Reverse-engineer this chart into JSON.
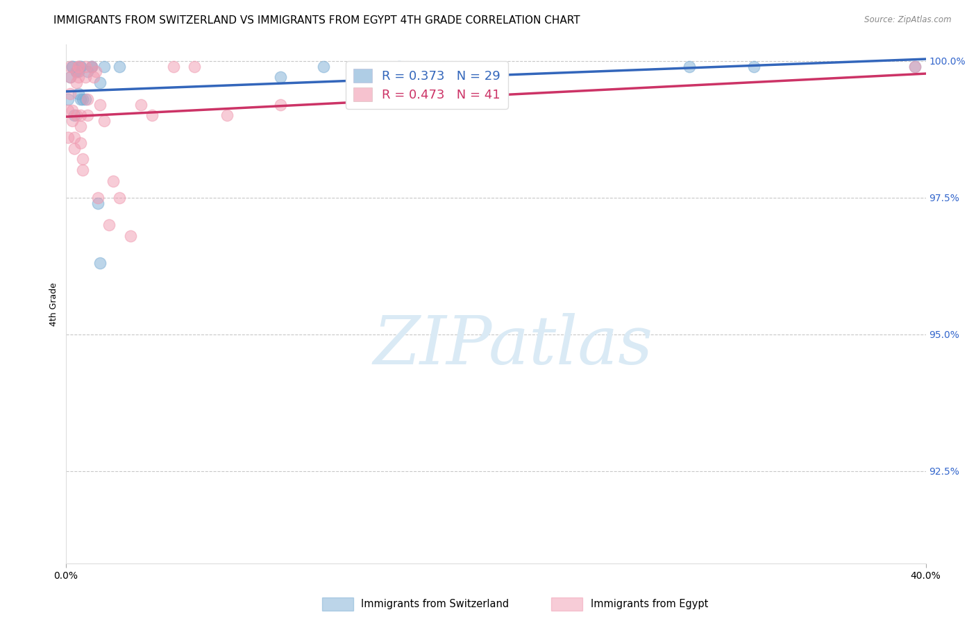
{
  "title": "IMMIGRANTS FROM SWITZERLAND VS IMMIGRANTS FROM EGYPT 4TH GRADE CORRELATION CHART",
  "source": "Source: ZipAtlas.com",
  "ylabel": "4th Grade",
  "xlim": [
    0.0,
    0.4
  ],
  "ylim": [
    0.908,
    1.003
  ],
  "yticks": [
    0.925,
    0.95,
    0.975,
    1.0
  ],
  "ytick_labels": [
    "92.5%",
    "95.0%",
    "97.5%",
    "100.0%"
  ],
  "xtick_labels": [
    "0.0%",
    "40.0%"
  ],
  "grid_color": "#c8c8c8",
  "background_color": "#ffffff",
  "switzerland_color": "#7aadd4",
  "egypt_color": "#f09ab0",
  "sw_line_color": "#3366bb",
  "eg_line_color": "#cc3366",
  "legend_R_switzerland": "R = 0.373",
  "legend_N_switzerland": "N = 29",
  "legend_R_egypt": "R = 0.473",
  "legend_N_egypt": "N = 41",
  "switzerland_x": [
    0.001,
    0.002,
    0.003,
    0.003,
    0.004,
    0.005,
    0.005,
    0.006,
    0.006,
    0.006,
    0.007,
    0.007,
    0.007,
    0.008,
    0.009,
    0.01,
    0.012,
    0.012,
    0.015,
    0.016,
    0.016,
    0.018,
    0.025,
    0.1,
    0.12,
    0.155,
    0.29,
    0.32,
    0.395
  ],
  "switzerland_y": [
    0.993,
    0.997,
    0.999,
    0.999,
    0.99,
    0.998,
    0.998,
    0.999,
    0.998,
    0.994,
    0.993,
    0.999,
    0.999,
    0.993,
    0.993,
    0.998,
    0.999,
    0.999,
    0.974,
    0.963,
    0.996,
    0.999,
    0.999,
    0.997,
    0.999,
    0.999,
    0.999,
    0.999,
    0.999
  ],
  "egypt_x": [
    0.001,
    0.001,
    0.002,
    0.002,
    0.002,
    0.003,
    0.003,
    0.004,
    0.004,
    0.005,
    0.005,
    0.005,
    0.006,
    0.006,
    0.006,
    0.007,
    0.007,
    0.007,
    0.008,
    0.008,
    0.009,
    0.009,
    0.01,
    0.01,
    0.012,
    0.013,
    0.014,
    0.015,
    0.016,
    0.018,
    0.02,
    0.022,
    0.025,
    0.03,
    0.035,
    0.04,
    0.05,
    0.06,
    0.075,
    0.1,
    0.395
  ],
  "egypt_y": [
    0.991,
    0.986,
    0.999,
    0.997,
    0.994,
    0.991,
    0.989,
    0.986,
    0.984,
    0.998,
    0.996,
    0.99,
    0.999,
    0.999,
    0.997,
    0.99,
    0.988,
    0.985,
    0.982,
    0.98,
    0.999,
    0.997,
    0.993,
    0.99,
    0.999,
    0.997,
    0.998,
    0.975,
    0.992,
    0.989,
    0.97,
    0.978,
    0.975,
    0.968,
    0.992,
    0.99,
    0.999,
    0.999,
    0.99,
    0.992,
    0.999
  ],
  "title_fontsize": 11,
  "axis_label_fontsize": 9,
  "tick_fontsize": 10,
  "legend_fontsize": 13,
  "marker_size": 140,
  "line_width": 2.5,
  "right_ytick_color": "#3366cc",
  "watermark_color": "#daeaf5",
  "watermark_fontsize": 70
}
